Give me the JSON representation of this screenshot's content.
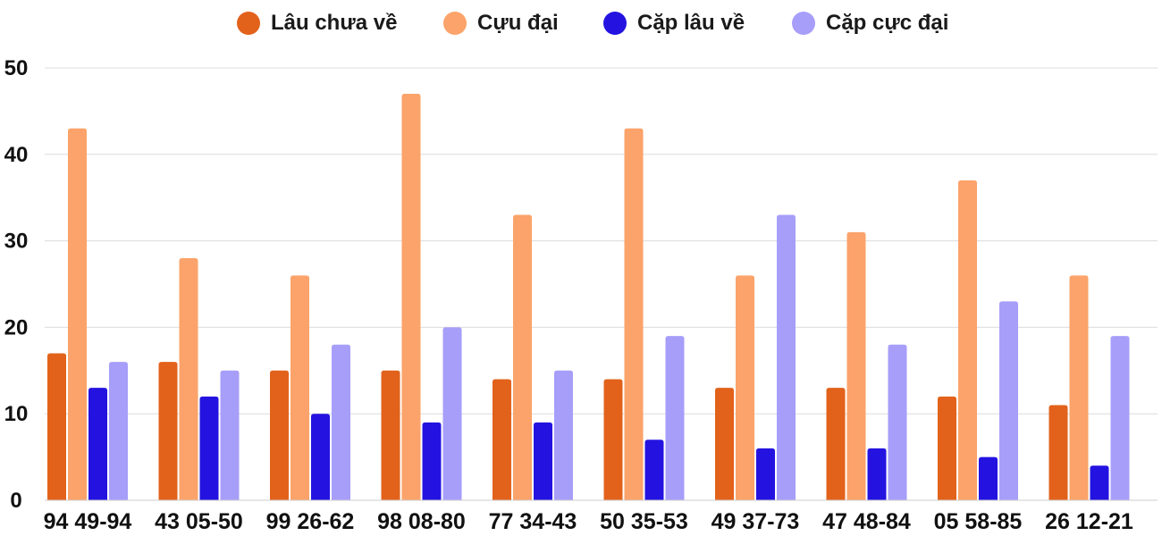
{
  "chart_data": {
    "type": "bar",
    "title": "",
    "xlabel": "",
    "ylabel": "",
    "ylim": [
      0,
      50
    ],
    "yticks": [
      0,
      10,
      20,
      30,
      40,
      50
    ],
    "grid": true,
    "legend_position": "top-center",
    "categories": [
      "94 49-94",
      "43 05-50",
      "99 26-62",
      "98 08-80",
      "77 34-43",
      "50 35-53",
      "49 37-73",
      "47 48-84",
      "05 58-85",
      "26 12-21"
    ],
    "series": [
      {
        "name": "Lâu chưa về",
        "color": "#e2621b",
        "values": [
          17,
          16,
          15,
          15,
          14,
          14,
          13,
          13,
          12,
          11
        ]
      },
      {
        "name": "Cựu đại",
        "color": "#fba36a",
        "values": [
          43,
          28,
          26,
          47,
          33,
          43,
          26,
          31,
          37,
          26
        ]
      },
      {
        "name": "Cặp lâu về",
        "color": "#2413e0",
        "values": [
          13,
          12,
          10,
          9,
          9,
          7,
          6,
          6,
          5,
          4
        ]
      },
      {
        "name": "Cặp cực đại",
        "color": "#a79efa",
        "values": [
          16,
          15,
          18,
          20,
          15,
          19,
          33,
          18,
          23,
          19
        ]
      }
    ]
  }
}
